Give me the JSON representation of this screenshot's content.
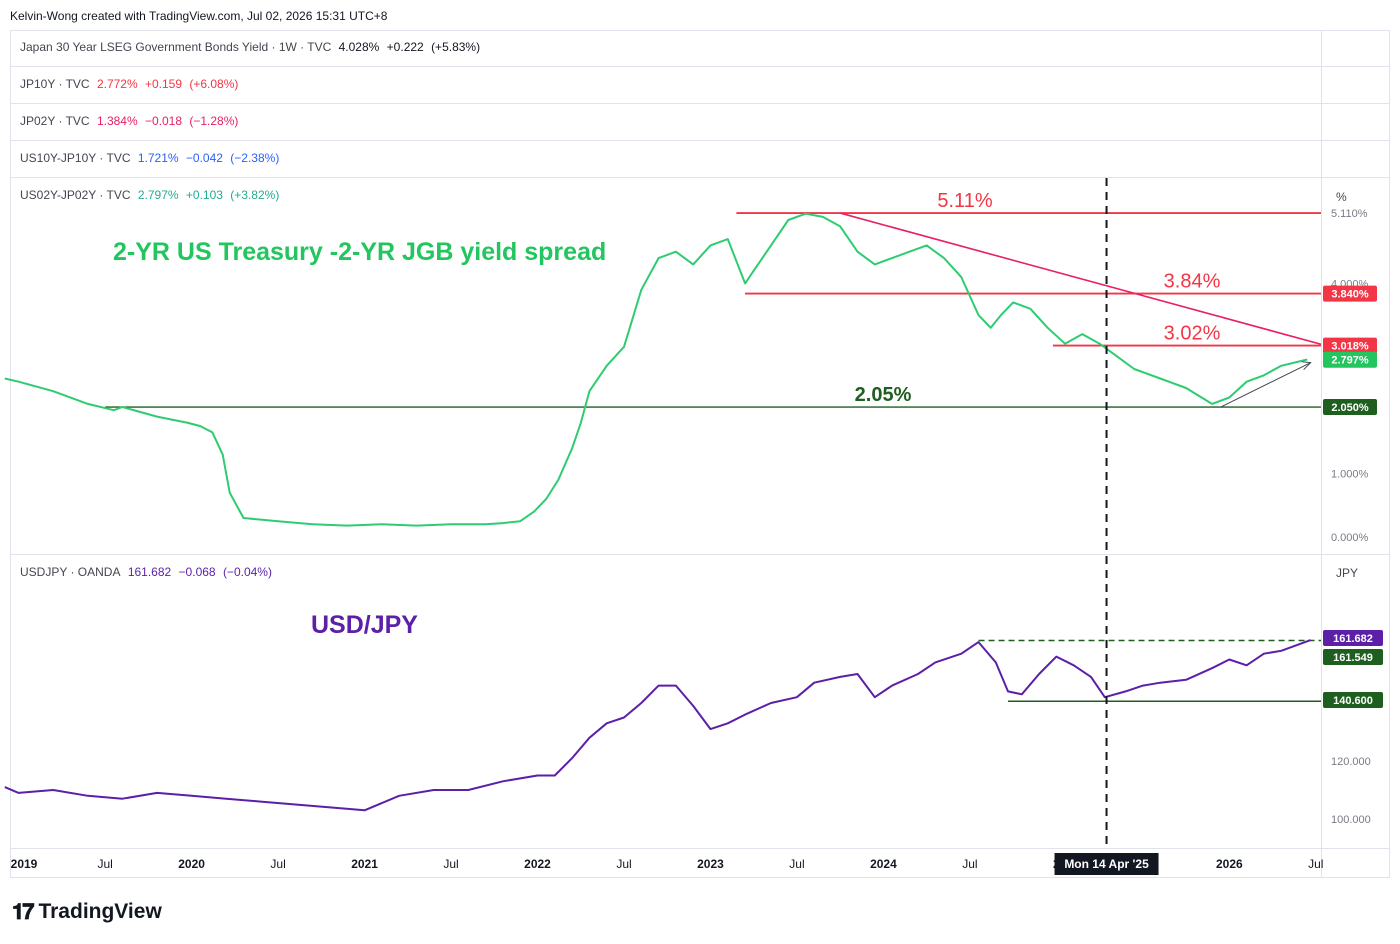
{
  "header": {
    "credit": "Kelvin-Wong created with TradingView.com, Jul 02, 2026 15:31 UTC+8"
  },
  "legends": [
    {
      "symbol": "Japan 30 Year LSEG Government Bonds Yield · 1W · TVC",
      "value": "4.028%",
      "change": "+0.222",
      "pct": "(+5.83%)",
      "color": "#131722"
    },
    {
      "symbol": "JP10Y · TVC",
      "value": "2.772%",
      "change": "+0.159",
      "pct": "(+6.08%)",
      "color": "#f23645"
    },
    {
      "symbol": "JP02Y · TVC",
      "value": "1.384%",
      "change": "−0.018",
      "pct": "(−1.28%)",
      "color": "#e91e63"
    },
    {
      "symbol": "US10Y-JP10Y · TVC",
      "value": "1.721%",
      "change": "−0.042",
      "pct": "(−2.38%)",
      "color": "#2962ff"
    },
    {
      "symbol": "US02Y-JP02Y · TVC",
      "value": "2.797%",
      "change": "+0.103",
      "pct": "(+3.82%)",
      "color": "#22ab94"
    },
    {
      "symbol": "USDJPY · OANDA",
      "value": "161.682",
      "change": "−0.068",
      "pct": "(−0.04%)",
      "color": "#5b1fa8"
    }
  ],
  "annotations": {
    "spread_title": "2-YR US Treasury -2-YR JGB yield spread",
    "usdjpy_title": "USD/JPY",
    "lvl_511": "5.11%",
    "lvl_384": "3.84%",
    "lvl_302": "3.02%",
    "lvl_205": "2.05%"
  },
  "axis": {
    "unit_top": "%",
    "unit_bottom": "JPY",
    "top_ticks": [
      "5.110%",
      "4.000%",
      "1.000%",
      "0.000%"
    ],
    "bottom_ticks": [
      "120.000",
      "100.000"
    ],
    "crosshair_date": "Mon 14 Apr '25",
    "x_ticks": [
      "2019",
      "Jul",
      "2020",
      "Jul",
      "2021",
      "Jul",
      "2022",
      "Jul",
      "2023",
      "Jul",
      "2024",
      "Jul",
      "2",
      "2026",
      "Jul"
    ]
  },
  "price_labels": {
    "top": [
      {
        "text": "3.840%",
        "bg": "#f23645"
      },
      {
        "text": "3.018%",
        "bg": "#f23645"
      },
      {
        "text": "2.797%",
        "bg": "#22c55e"
      },
      {
        "text": "2.050%",
        "bg": "#1e5e1e"
      }
    ],
    "bottom": [
      {
        "text": "161.682",
        "bg": "#5b1fa8"
      },
      {
        "text": "161.549",
        "bg": "#1e5e1e"
      },
      {
        "text": "140.600",
        "bg": "#1e5e1e"
      }
    ]
  },
  "chart_data": [
    {
      "type": "line",
      "series": [
        {
          "name": "US02Y-JP02Y · TVC",
          "color": "#2ecc71"
        }
      ],
      "x": [
        2018.92,
        2019.0,
        2019.2,
        2019.4,
        2019.55,
        2019.6,
        2019.8,
        2019.98,
        2020.05,
        2020.12,
        2020.18,
        2020.22,
        2020.3,
        2020.5,
        2020.7,
        2020.9,
        2021.1,
        2021.3,
        2021.5,
        2021.7,
        2021.8,
        2021.9,
        2021.98,
        2022.05,
        2022.12,
        2022.2,
        2022.25,
        2022.3,
        2022.4,
        2022.5,
        2022.6,
        2022.7,
        2022.8,
        2022.9,
        2023.0,
        2023.1,
        2023.2,
        2023.25,
        2023.35,
        2023.45,
        2023.55,
        2023.65,
        2023.75,
        2023.85,
        2023.95,
        2024.05,
        2024.15,
        2024.25,
        2024.35,
        2024.45,
        2024.55,
        2024.62,
        2024.68,
        2024.75,
        2024.85,
        2024.95,
        2025.05,
        2025.15,
        2025.25,
        2025.35,
        2025.45,
        2025.6,
        2025.75,
        2025.9,
        2026.0,
        2026.1,
        2026.2,
        2026.3,
        2026.45
      ],
      "values": [
        2.5,
        2.45,
        2.3,
        2.1,
        2.0,
        2.05,
        1.9,
        1.8,
        1.75,
        1.65,
        1.3,
        0.7,
        0.3,
        0.25,
        0.2,
        0.18,
        0.2,
        0.18,
        0.2,
        0.2,
        0.22,
        0.25,
        0.4,
        0.6,
        0.9,
        1.4,
        1.8,
        2.3,
        2.7,
        3.0,
        3.9,
        4.4,
        4.5,
        4.3,
        4.6,
        4.7,
        4.0,
        4.2,
        4.6,
        5.0,
        5.1,
        5.05,
        4.9,
        4.5,
        4.3,
        4.4,
        4.5,
        4.6,
        4.4,
        4.1,
        3.5,
        3.3,
        3.5,
        3.7,
        3.6,
        3.3,
        3.05,
        3.2,
        3.05,
        2.85,
        2.65,
        2.5,
        2.35,
        2.1,
        2.2,
        2.45,
        2.55,
        2.7,
        2.8
      ],
      "lines": [
        {
          "name": "5.11%",
          "value": 5.11,
          "x_from": 2023.15,
          "x_to": 2026.53
        },
        {
          "name": "3.84%",
          "value": 3.84,
          "x_from": 2023.2,
          "x_to": 2026.53
        },
        {
          "name": "3.02%",
          "value": 3.02,
          "x_from": 2024.98,
          "x_to": 2026.53
        },
        {
          "name": "2.05%",
          "value": 2.05,
          "x_from": 2019.5,
          "x_to": 2026.53
        }
      ],
      "trendlines": [
        {
          "x": [
            2023.75,
            2026.53
          ],
          "y": [
            5.11,
            3.04
          ],
          "color": "#e91e63"
        },
        {
          "x": [
            2025.95,
            2026.47
          ],
          "y": [
            2.05,
            2.75
          ],
          "color": "#434651"
        }
      ],
      "crosshair_x": 2025.29,
      "ylim": [
        0,
        5.6
      ],
      "xlim": [
        2018.95,
        2026.53
      ]
    },
    {
      "type": "line",
      "series": [
        {
          "name": "USDJPY · OANDA",
          "color": "#5b1fa8"
        }
      ],
      "x": [
        2018.92,
        2019.0,
        2019.2,
        2019.4,
        2019.6,
        2019.8,
        2020.0,
        2020.2,
        2020.4,
        2020.6,
        2020.8,
        2021.0,
        2021.2,
        2021.4,
        2021.6,
        2021.8,
        2022.0,
        2022.1,
        2022.2,
        2022.3,
        2022.4,
        2022.5,
        2022.6,
        2022.7,
        2022.8,
        2022.9,
        2023.0,
        2023.1,
        2023.2,
        2023.35,
        2023.5,
        2023.6,
        2023.75,
        2023.85,
        2023.95,
        2024.05,
        2024.2,
        2024.3,
        2024.45,
        2024.55,
        2024.65,
        2024.72,
        2024.8,
        2024.9,
        2025.0,
        2025.1,
        2025.2,
        2025.28,
        2025.4,
        2025.5,
        2025.6,
        2025.75,
        2025.9,
        2026.0,
        2026.1,
        2026.2,
        2026.3,
        2026.47
      ],
      "values": [
        111,
        109,
        110,
        108,
        107,
        109,
        108,
        107,
        106,
        105,
        104,
        103,
        108,
        110,
        110,
        113,
        115,
        115,
        121,
        128,
        133,
        135,
        140,
        146,
        146,
        139,
        131,
        133,
        136,
        140,
        142,
        147,
        149,
        150,
        142,
        146,
        150,
        154,
        157,
        161,
        154,
        144,
        143,
        150,
        156,
        153,
        149,
        142,
        144,
        146,
        147,
        148,
        152,
        155,
        153,
        157,
        158,
        161.7
      ],
      "lines": [
        {
          "name": "161.549",
          "value": 161.549,
          "x_from": 2024.55,
          "x_to": 2026.53,
          "dashed": true
        },
        {
          "name": "140.600",
          "value": 140.6,
          "x_from": 2024.72,
          "x_to": 2026.53
        }
      ],
      "ylim": [
        96,
        170
      ],
      "xlim": [
        2018.95,
        2026.53
      ]
    }
  ]
}
